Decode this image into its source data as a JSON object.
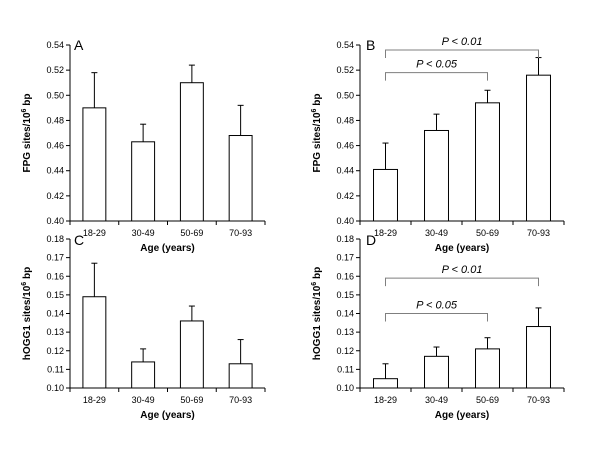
{
  "chart_data": [
    {
      "type": "bar",
      "panel_label": "A",
      "categories": [
        "18-29",
        "30-49",
        "50-69",
        "70-93"
      ],
      "values": [
        0.49,
        0.463,
        0.51,
        0.468
      ],
      "errors": [
        0.028,
        0.014,
        0.014,
        0.024
      ],
      "xlabel": "Age (years)",
      "ylabel": "FPG sites/10",
      "ylabel_sup": "6",
      "ylabel_suffix": " bp",
      "ylim": [
        0.4,
        0.54
      ],
      "yticks": [
        "0.40",
        "0.42",
        "0.44",
        "0.46",
        "0.48",
        "0.50",
        "0.52",
        "0.54"
      ],
      "annotations": []
    },
    {
      "type": "bar",
      "panel_label": "B",
      "categories": [
        "18-29",
        "30-49",
        "50-69",
        "70-93"
      ],
      "values": [
        0.441,
        0.472,
        0.494,
        0.516
      ],
      "errors": [
        0.021,
        0.013,
        0.01,
        0.014
      ],
      "xlabel": "Age (years)",
      "ylabel": "FPG sites/10",
      "ylabel_sup": "6",
      "ylabel_suffix": " bp",
      "ylim": [
        0.4,
        0.54
      ],
      "yticks": [
        "0.40",
        "0.42",
        "0.44",
        "0.46",
        "0.48",
        "0.50",
        "0.52",
        "0.54"
      ],
      "annotations": [
        {
          "text": "P < 0.05",
          "from": 0,
          "to": 2,
          "y": 0.518
        },
        {
          "text": "P < 0.01",
          "from": 0,
          "to": 3,
          "y": 0.536
        }
      ]
    },
    {
      "type": "bar",
      "panel_label": "C",
      "categories": [
        "18-29",
        "30-49",
        "50-69",
        "70-93"
      ],
      "values": [
        0.149,
        0.114,
        0.136,
        0.113
      ],
      "errors": [
        0.018,
        0.007,
        0.008,
        0.013
      ],
      "xlabel": "Age (years)",
      "ylabel": "hOGG1 sites/10",
      "ylabel_sup": "6",
      "ylabel_suffix": " bp",
      "ylim": [
        0.1,
        0.18
      ],
      "yticks": [
        "0.10",
        "0.11",
        "0.12",
        "0.13",
        "0.14",
        "0.15",
        "0.16",
        "0.17",
        "0.18"
      ],
      "annotations": []
    },
    {
      "type": "bar",
      "panel_label": "D",
      "categories": [
        "18-29",
        "30-49",
        "50-69",
        "70-93"
      ],
      "values": [
        0.105,
        0.117,
        0.121,
        0.133
      ],
      "errors": [
        0.008,
        0.005,
        0.006,
        0.01
      ],
      "xlabel": "Age (years)",
      "ylabel": "hOGG1 sites/10",
      "ylabel_sup": "6",
      "ylabel_suffix": " bp",
      "ylim": [
        0.1,
        0.18
      ],
      "yticks": [
        "0.10",
        "0.11",
        "0.12",
        "0.13",
        "0.14",
        "0.15",
        "0.16",
        "0.17",
        "0.18"
      ],
      "annotations": [
        {
          "text": "P < 0.05",
          "from": 0,
          "to": 2,
          "y": 0.14
        },
        {
          "text": "P < 0.01",
          "from": 0,
          "to": 3,
          "y": 0.159
        }
      ]
    }
  ]
}
